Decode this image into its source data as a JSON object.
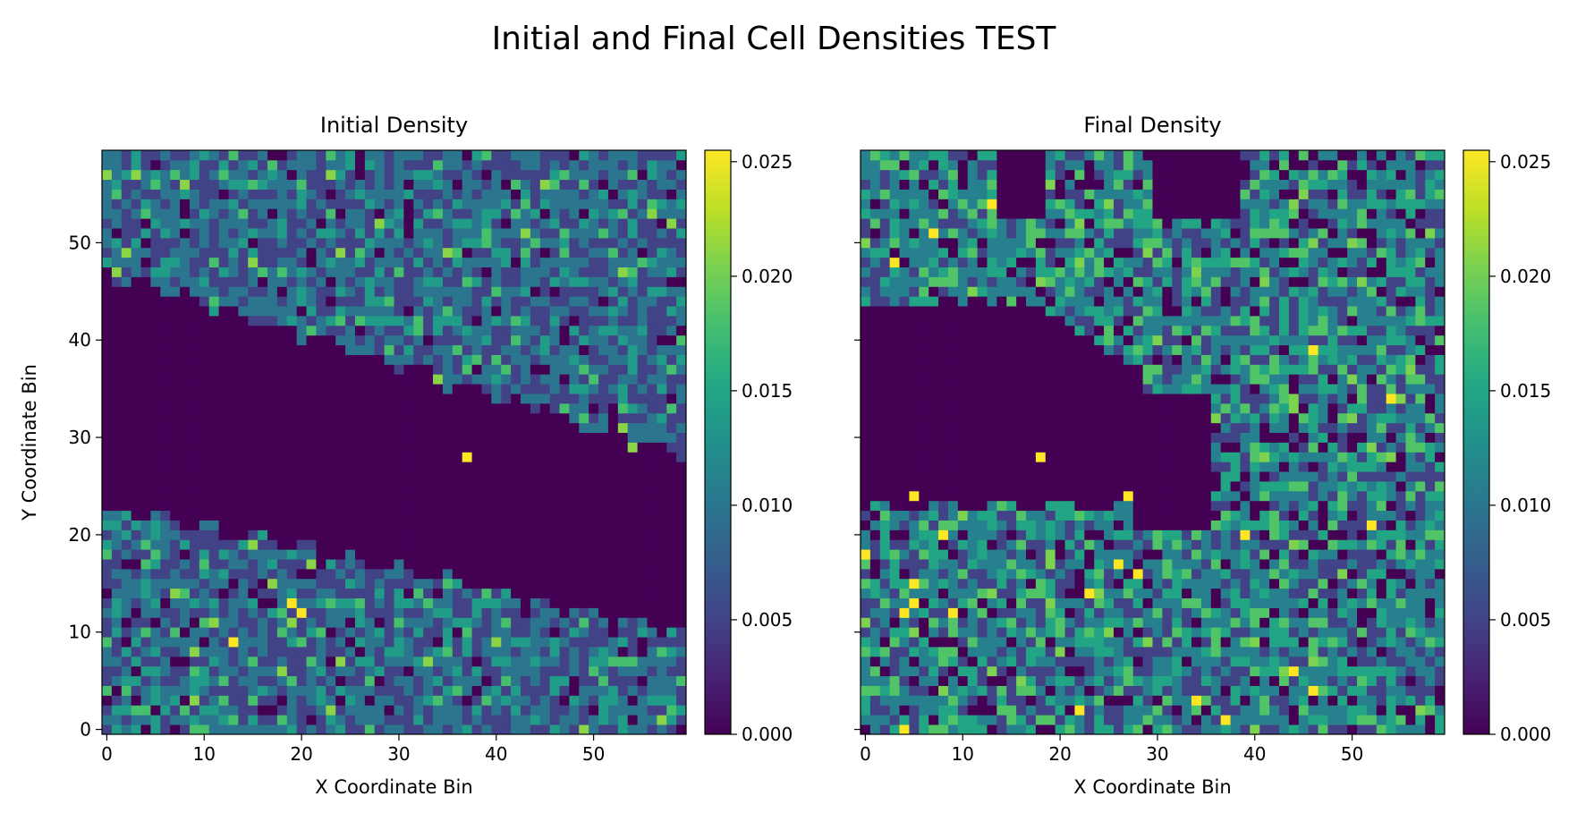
{
  "figure": {
    "title": "Initial and Final Cell Densities TEST"
  },
  "chart_data": [
    {
      "type": "heatmap",
      "title": "Initial Density",
      "xlabel": "X Coordinate Bin",
      "ylabel": "Y Coordinate Bin",
      "grid_size": [
        60,
        60
      ],
      "xlim": [
        -0.5,
        59.5
      ],
      "ylim": [
        -0.5,
        59.5
      ],
      "xticks": [
        "0",
        "10",
        "20",
        "30",
        "40",
        "50"
      ],
      "yticks": [
        "0",
        "10",
        "20",
        "30",
        "40",
        "50"
      ],
      "colormap": "viridis",
      "color_range": [
        0,
        0.0255
      ],
      "colorbar_ticks": [
        "0.000",
        "0.005",
        "0.010",
        "0.015",
        "0.020",
        "0.025"
      ],
      "grid": false,
      "description_of_pattern": "empty (0) diagonal band from upper-left (y≈23–47 at x=0) to lower-right (y≈10–28 at x=59); values ~0.005–0.016 elsewhere; a few peaks at ~0.025",
      "hotspots": [
        {
          "x": 19,
          "y": 13,
          "value": 0.0255
        },
        {
          "x": 20,
          "y": 12,
          "value": 0.0255
        },
        {
          "x": 13,
          "y": 9,
          "value": 0.0255
        },
        {
          "x": 37,
          "y": 28,
          "value": 0.0255
        },
        {
          "x": 24,
          "y": 49,
          "value": 0.021
        }
      ]
    },
    {
      "type": "heatmap",
      "title": "Final Density",
      "xlabel": "X Coordinate Bin",
      "ylabel": "",
      "grid_size": [
        60,
        60
      ],
      "xlim": [
        -0.5,
        59.5
      ],
      "ylim": [
        -0.5,
        59.5
      ],
      "xticks": [
        "0",
        "10",
        "20",
        "30",
        "40",
        "50"
      ],
      "yticks": [],
      "colormap": "viridis",
      "color_range": [
        0,
        0.0255
      ],
      "colorbar_ticks": [
        "0.000",
        "0.005",
        "0.010",
        "0.015",
        "0.020",
        "0.025"
      ],
      "grid": false,
      "description_of_pattern": "smaller empty region on the left (x≈0–30, y≈23–42) plus scattered empty clusters at the top; values more spread ~0.005–0.020 elsewhere",
      "hotspots": [
        {
          "x": 13,
          "y": 54,
          "value": 0.0255
        },
        {
          "x": 7,
          "y": 51,
          "value": 0.0255
        },
        {
          "x": 3,
          "y": 48,
          "value": 0.0255
        },
        {
          "x": 46,
          "y": 39,
          "value": 0.0255
        },
        {
          "x": 54,
          "y": 34,
          "value": 0.0255
        },
        {
          "x": 18,
          "y": 28,
          "value": 0.0255
        },
        {
          "x": 27,
          "y": 24,
          "value": 0.0255
        },
        {
          "x": 5,
          "y": 24,
          "value": 0.0255
        },
        {
          "x": 52,
          "y": 21,
          "value": 0.0255
        },
        {
          "x": 8,
          "y": 20,
          "value": 0.0255
        },
        {
          "x": 39,
          "y": 20,
          "value": 0.0255
        },
        {
          "x": 0,
          "y": 18,
          "value": 0.0255
        },
        {
          "x": 26,
          "y": 17,
          "value": 0.0255
        },
        {
          "x": 28,
          "y": 16,
          "value": 0.0255
        },
        {
          "x": 5,
          "y": 15,
          "value": 0.0255
        },
        {
          "x": 23,
          "y": 14,
          "value": 0.0255
        },
        {
          "x": 5,
          "y": 13,
          "value": 0.0255
        },
        {
          "x": 4,
          "y": 12,
          "value": 0.0255
        },
        {
          "x": 9,
          "y": 12,
          "value": 0.0255
        },
        {
          "x": 44,
          "y": 6,
          "value": 0.0255
        },
        {
          "x": 46,
          "y": 4,
          "value": 0.0255
        },
        {
          "x": 34,
          "y": 3,
          "value": 0.0255
        },
        {
          "x": 22,
          "y": 2,
          "value": 0.0255
        },
        {
          "x": 37,
          "y": 1,
          "value": 0.0255
        },
        {
          "x": 4,
          "y": 0,
          "value": 0.0255
        }
      ]
    }
  ]
}
